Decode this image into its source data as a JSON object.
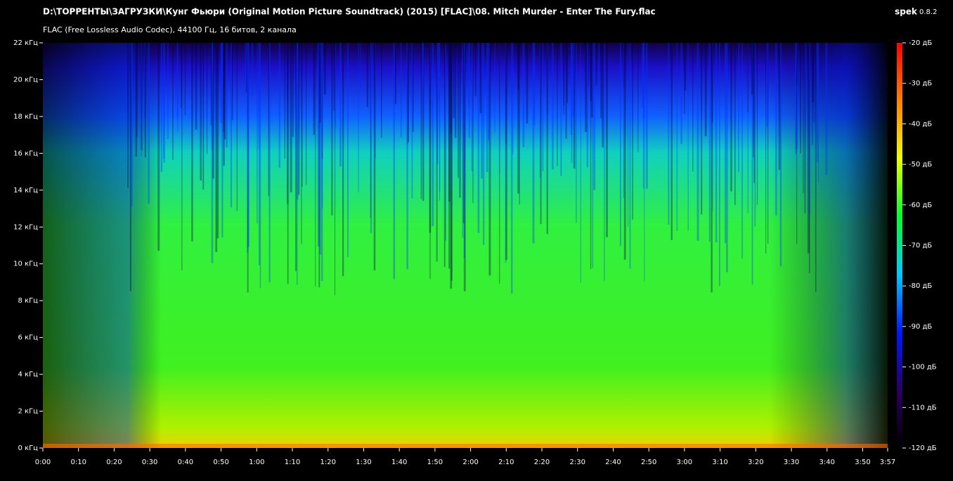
{
  "chart_data": {
    "type": "spectrogram",
    "title": "D:\\ТОРРЕНТЫ\\ЗАГРУЗКИ\\Кунг Фьюри (Original Motion Picture Soundtrack) (2015) [FLAC]\\08. Mitch Murder - Enter The Fury.flac",
    "subtitle": "FLAC (Free Lossless Audio Codec), 44100 Гц, 16 битов, 2 канала",
    "app_name": "spek",
    "app_version": "0.8.2",
    "xlim": [
      0,
      237
    ],
    "xticks": [
      {
        "value": 0,
        "label": "0:00"
      },
      {
        "value": 10,
        "label": "0:10"
      },
      {
        "value": 20,
        "label": "0:20"
      },
      {
        "value": 30,
        "label": "0:30"
      },
      {
        "value": 40,
        "label": "0:40"
      },
      {
        "value": 50,
        "label": "0:50"
      },
      {
        "value": 60,
        "label": "1:00"
      },
      {
        "value": 70,
        "label": "1:10"
      },
      {
        "value": 80,
        "label": "1:20"
      },
      {
        "value": 90,
        "label": "1:30"
      },
      {
        "value": 100,
        "label": "1:40"
      },
      {
        "value": 110,
        "label": "1:50"
      },
      {
        "value": 120,
        "label": "2:00"
      },
      {
        "value": 130,
        "label": "2:10"
      },
      {
        "value": 140,
        "label": "2:20"
      },
      {
        "value": 150,
        "label": "2:30"
      },
      {
        "value": 160,
        "label": "2:40"
      },
      {
        "value": 170,
        "label": "2:50"
      },
      {
        "value": 180,
        "label": "3:00"
      },
      {
        "value": 190,
        "label": "3:10"
      },
      {
        "value": 200,
        "label": "3:20"
      },
      {
        "value": 210,
        "label": "3:30"
      },
      {
        "value": 220,
        "label": "3:40"
      },
      {
        "value": 230,
        "label": "3:50"
      },
      {
        "value": 237,
        "label": "3:57"
      }
    ],
    "ylim": [
      0,
      22
    ],
    "yticks": [
      {
        "value": 0,
        "label": "0 кГц"
      },
      {
        "value": 2,
        "label": "2 кГц"
      },
      {
        "value": 4,
        "label": "4 кГц"
      },
      {
        "value": 6,
        "label": "6 кГц"
      },
      {
        "value": 8,
        "label": "8 кГц"
      },
      {
        "value": 10,
        "label": "10 кГц"
      },
      {
        "value": 12,
        "label": "12 кГц"
      },
      {
        "value": 14,
        "label": "14 кГц"
      },
      {
        "value": 16,
        "label": "16 кГц"
      },
      {
        "value": 18,
        "label": "18 кГц"
      },
      {
        "value": 20,
        "label": "20 кГц"
      },
      {
        "value": 22,
        "label": "22 кГц"
      }
    ],
    "zlim": [
      -120,
      -20
    ],
    "zticks": [
      {
        "value": -20,
        "label": "-20 дБ"
      },
      {
        "value": -30,
        "label": "-30 дБ"
      },
      {
        "value": -40,
        "label": "-40 дБ"
      },
      {
        "value": -50,
        "label": "-50 дБ"
      },
      {
        "value": -60,
        "label": "-60 дБ"
      },
      {
        "value": -70,
        "label": "-70 дБ"
      },
      {
        "value": -80,
        "label": "-80 дБ"
      },
      {
        "value": -90,
        "label": "-90 дБ"
      },
      {
        "value": -100,
        "label": "-100 дБ"
      },
      {
        "value": -110,
        "label": "-110 дБ"
      },
      {
        "value": -120,
        "label": "-120 дБ"
      }
    ],
    "colorscale": [
      "#000000",
      "#2a0060",
      "#0018ff",
      "#00c8ff",
      "#00ff30",
      "#f0ff00",
      "#ff8000",
      "#ff0000"
    ]
  }
}
